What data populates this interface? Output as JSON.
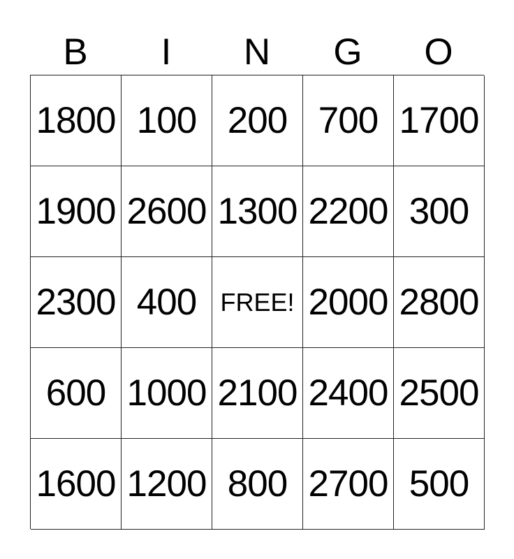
{
  "header": [
    "B",
    "I",
    "N",
    "G",
    "O"
  ],
  "cells": [
    [
      "1800",
      "100",
      "200",
      "700",
      "1700"
    ],
    [
      "1900",
      "2600",
      "1300",
      "2200",
      "300"
    ],
    [
      "2300",
      "400",
      "FREE!",
      "2000",
      "2800"
    ],
    [
      "600",
      "1000",
      "2100",
      "2400",
      "2500"
    ],
    [
      "1600",
      "1200",
      "800",
      "2700",
      "500"
    ]
  ]
}
